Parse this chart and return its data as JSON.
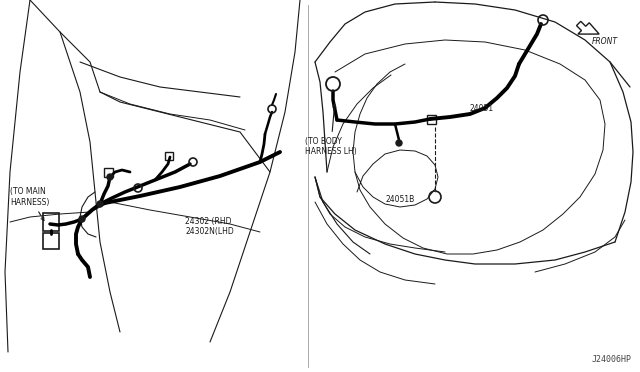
{
  "bg_color": "#ffffff",
  "lc": "#1a1a1a",
  "tlc": "#000000",
  "fig_width": 6.4,
  "fig_height": 3.72,
  "dpi": 100,
  "catalog_number": "J24006HP",
  "front_label": "FRONT",
  "labels": {
    "to_main": "(TO MAIN\nHARNESS)",
    "part_24302": "24302 (RHD\n24302N(LHD",
    "to_body": "(TO BODY\nHARNESS LH)",
    "part_24051": "24051",
    "part_24051B": "24051B"
  }
}
